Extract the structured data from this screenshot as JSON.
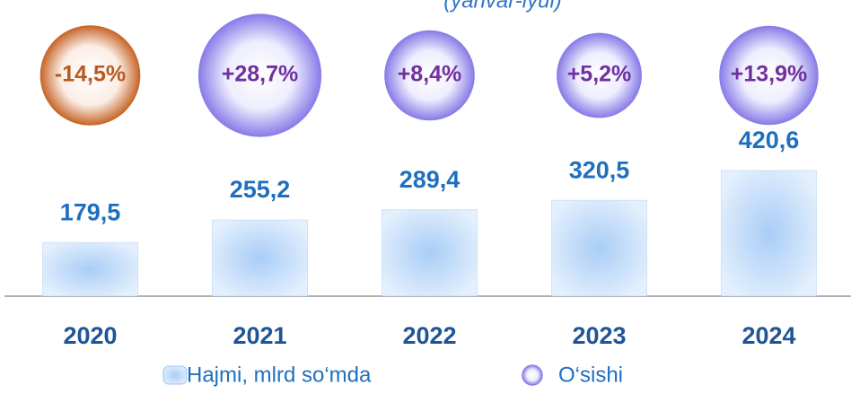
{
  "chart_data": {
    "type": "bar_bubble",
    "subtitle": "(yanvar-iyul)",
    "categories": [
      "2020",
      "2021",
      "2022",
      "2023",
      "2024"
    ],
    "series": [
      {
        "name": "Hajmi, mlrd so‘mda",
        "color": "#9fc4f2",
        "values": [
          179.5,
          255.2,
          289.4,
          320.5,
          420.6
        ],
        "value_labels": [
          "179,5",
          "255,2",
          "289,4",
          "320,5",
          "420,6"
        ]
      },
      {
        "name": "O‘sishi",
        "color": "#8a7de8",
        "negative_color": "#c8682c",
        "values": [
          -14.5,
          28.7,
          8.4,
          5.2,
          13.9
        ],
        "value_labels": [
          "-14,5%",
          "+28,7%",
          "+8,4%",
          "+5,2%",
          "+13,9%"
        ]
      }
    ]
  }
}
